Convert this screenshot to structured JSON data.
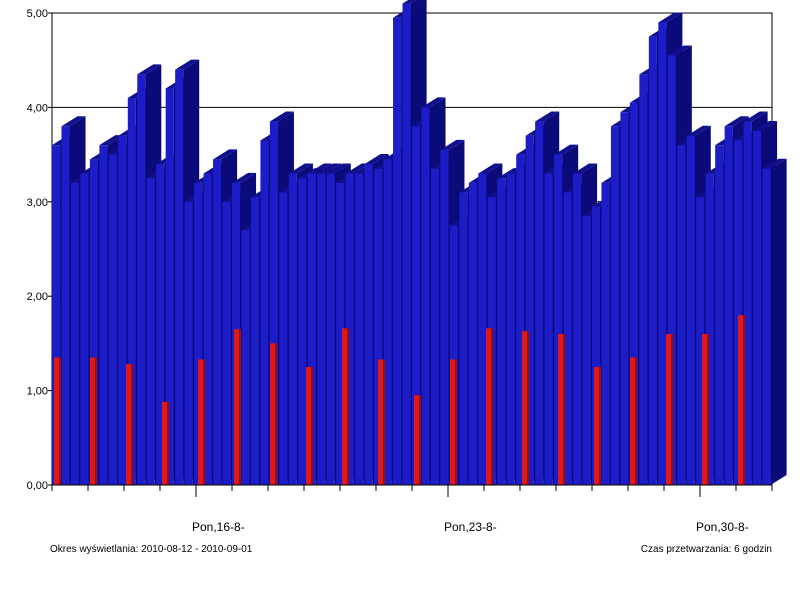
{
  "chart_data": {
    "type": "bar",
    "x_start": "2010-08-12",
    "x_end": "2010-09-01",
    "yticks": [
      "0,00",
      "1,00",
      "2,00",
      "3,00",
      "4,00",
      "5,00"
    ],
    "ylim": [
      0,
      5
    ],
    "grid": true,
    "xtick_labels": [
      "Pon,16-8-",
      "Pon,23-8-",
      "Pon,30-8-"
    ],
    "footer_left": "Okres wyświetlania: 2010-08-12 - 2010-09-01",
    "footer_right": "Czas przetwarzania: 6 godzin",
    "series": [
      {
        "color": "#1c1cc8",
        "values": [
          3.6,
          3.8,
          3.2,
          3.3,
          3.45,
          3.6,
          3.5,
          3.7,
          4.1,
          4.35,
          3.25,
          3.4,
          4.2,
          4.4,
          3.0,
          3.2,
          3.3,
          3.45,
          3.0,
          3.2,
          2.7,
          3.05,
          3.65,
          3.85,
          3.1,
          3.3,
          3.25,
          3.3,
          3.3,
          3.3,
          3.2,
          3.3,
          3.3,
          3.4,
          3.35,
          3.45,
          4.95,
          5.1,
          3.8,
          4.0,
          3.35,
          3.55,
          2.75,
          3.1,
          3.2,
          3.3,
          3.05,
          3.25,
          3.3,
          3.5,
          3.7,
          3.85,
          3.3,
          3.5,
          3.1,
          3.3,
          2.85,
          2.95,
          3.2,
          3.8,
          3.95,
          4.05,
          4.35,
          4.75,
          4.9,
          4.55,
          3.6,
          3.7,
          3.05,
          3.3,
          3.6,
          3.8,
          3.65,
          3.85,
          3.75,
          3.35
        ]
      },
      {
        "color": "#e01818",
        "values": [
          1.35,
          1.35,
          1.28,
          0.88,
          1.33,
          1.65,
          1.5,
          1.25,
          1.66,
          1.33,
          0.95,
          1.33,
          1.66,
          1.63,
          1.6,
          1.25,
          1.35,
          1.6,
          1.6,
          1.8
        ]
      }
    ]
  }
}
